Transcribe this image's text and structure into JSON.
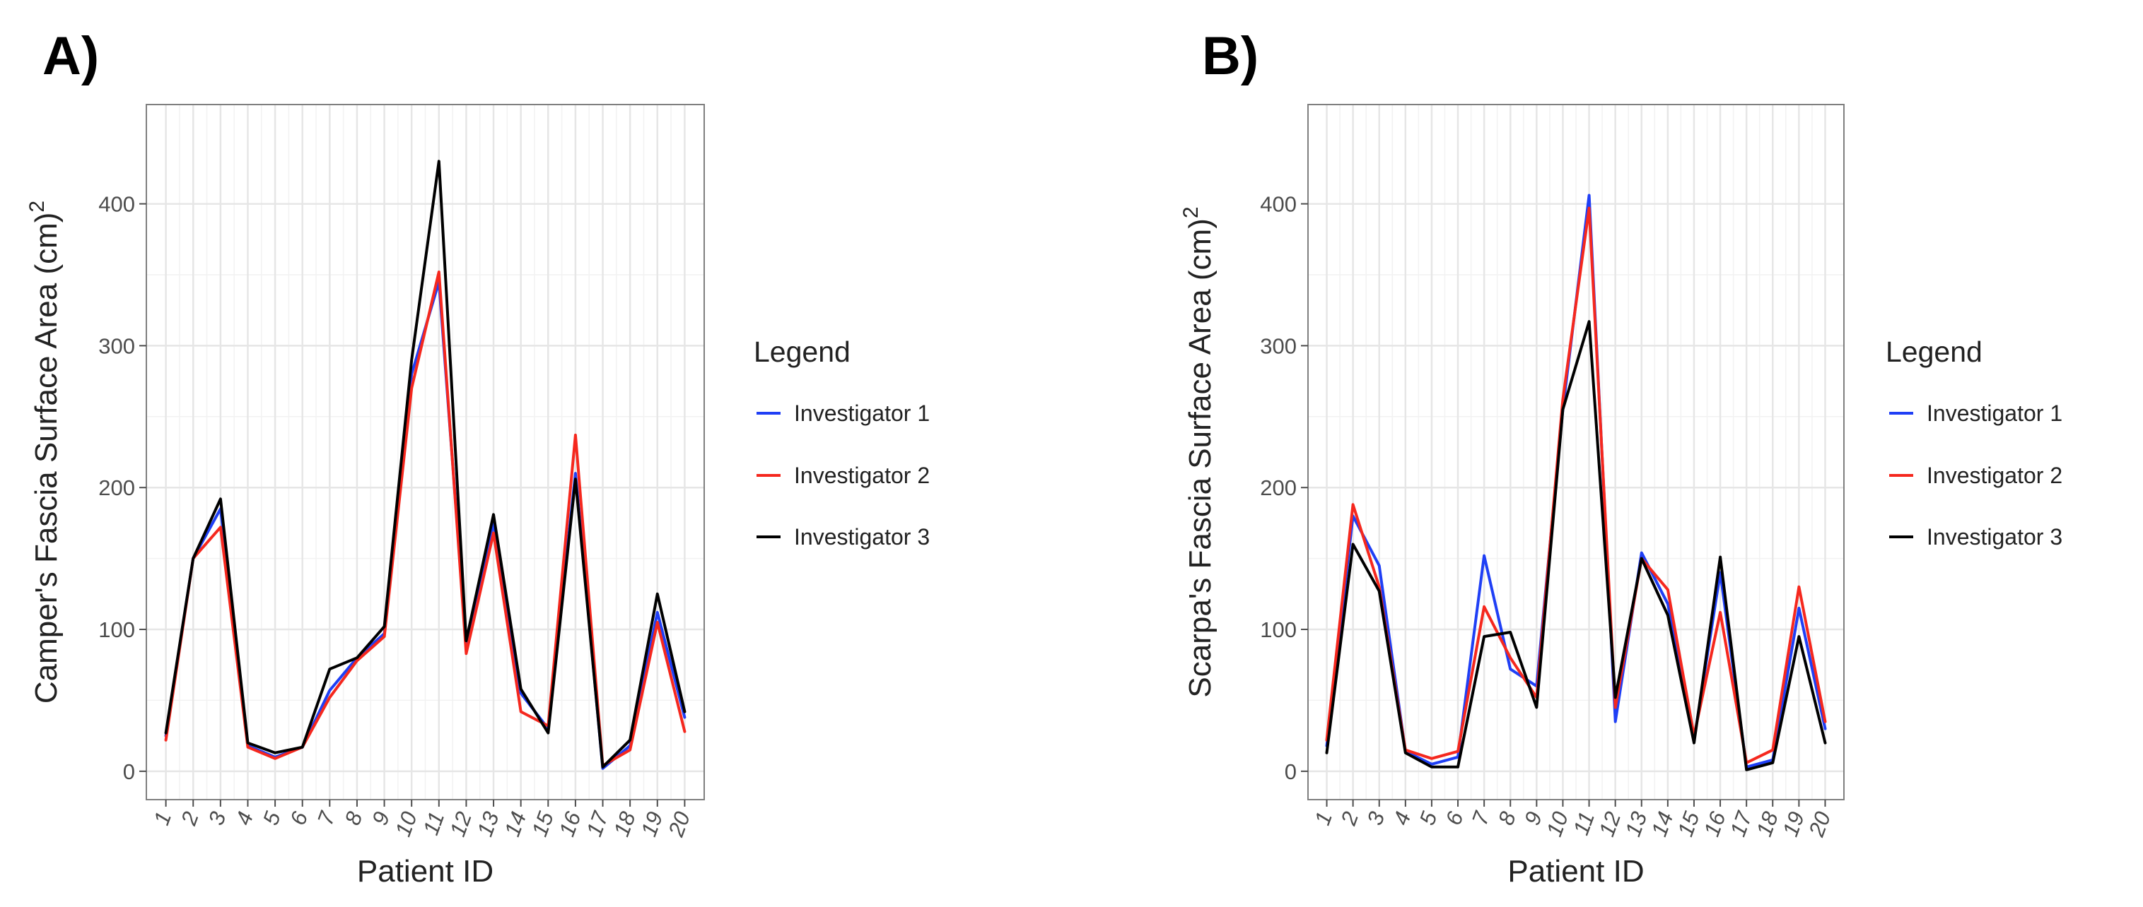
{
  "colors": {
    "investigator_1": "#1f3ff5",
    "investigator_2": "#f5281e",
    "investigator_3": "#000000"
  },
  "chart_data": [
    {
      "panel_label": "A)",
      "type": "line",
      "xlabel": "Patient ID",
      "ylabel": "Camper's Fascia Surface Area (cm)",
      "ylabel_superscript": "2",
      "categories": [
        "1",
        "2",
        "3",
        "4",
        "5",
        "6",
        "7",
        "8",
        "9",
        "10",
        "11",
        "12",
        "13",
        "14",
        "15",
        "16",
        "17",
        "18",
        "19",
        "20"
      ],
      "y_ticks": [
        0,
        100,
        200,
        300,
        400
      ],
      "ylim": [
        -20,
        470
      ],
      "grid": true,
      "legend": {
        "title": "Legend",
        "position": "right",
        "entries": [
          "Investigator 1",
          "Investigator 2",
          "Investigator 3"
        ]
      },
      "series": [
        {
          "name": "Investigator 1",
          "values": [
            25,
            150,
            185,
            18,
            10,
            17,
            57,
            80,
            97,
            280,
            345,
            90,
            175,
            55,
            30,
            210,
            2,
            18,
            112,
            38
          ]
        },
        {
          "name": "Investigator 2",
          "values": [
            22,
            150,
            172,
            17,
            9,
            17,
            52,
            78,
            95,
            270,
            352,
            83,
            168,
            42,
            32,
            237,
            4,
            15,
            105,
            28
          ]
        },
        {
          "name": "Investigator 3",
          "values": [
            27,
            150,
            192,
            20,
            13,
            17,
            72,
            80,
            102,
            290,
            430,
            92,
            181,
            58,
            27,
            206,
            3,
            22,
            125,
            42
          ]
        }
      ]
    },
    {
      "panel_label": "B)",
      "type": "line",
      "xlabel": "Patient ID",
      "ylabel": "Scarpa's Fascia Surface Area (cm)",
      "ylabel_superscript": "2",
      "categories": [
        "1",
        "2",
        "3",
        "4",
        "5",
        "6",
        "7",
        "8",
        "9",
        "10",
        "11",
        "12",
        "13",
        "14",
        "15",
        "16",
        "17",
        "18",
        "19",
        "20"
      ],
      "y_ticks": [
        0,
        100,
        200,
        300,
        400
      ],
      "ylim": [
        -20,
        470
      ],
      "grid": true,
      "legend": {
        "title": "Legend",
        "position": "right",
        "entries": [
          "Investigator 1",
          "Investigator 2",
          "Investigator 3"
        ]
      },
      "series": [
        {
          "name": "Investigator 1",
          "values": [
            18,
            180,
            145,
            14,
            5,
            10,
            152,
            72,
            60,
            255,
            406,
            35,
            154,
            118,
            22,
            140,
            3,
            8,
            115,
            30
          ]
        },
        {
          "name": "Investigator 2",
          "values": [
            22,
            188,
            130,
            15,
            9,
            14,
            116,
            80,
            52,
            262,
            397,
            45,
            150,
            128,
            25,
            112,
            6,
            15,
            130,
            35
          ]
        },
        {
          "name": "Investigator 3",
          "values": [
            13,
            160,
            127,
            13,
            3,
            3,
            95,
            98,
            45,
            255,
            317,
            52,
            150,
            110,
            20,
            151,
            1,
            6,
            95,
            20
          ]
        }
      ]
    }
  ]
}
